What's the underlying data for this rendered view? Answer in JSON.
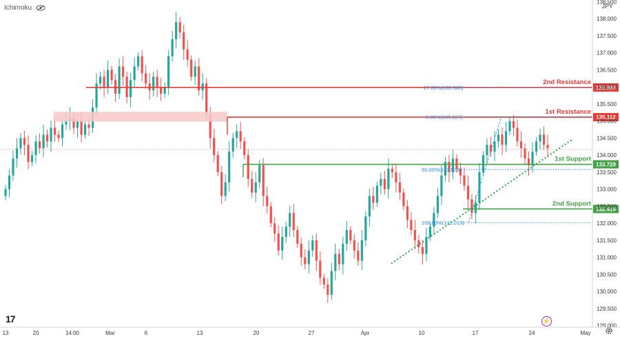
{
  "header": {
    "indicator": "Ichimoku",
    "currency": "JPY"
  },
  "colors": {
    "up": "#26a69a",
    "down": "#ef5350",
    "resistance": "#e53935",
    "support": "#43a047",
    "trend": "#2e9e44",
    "fib": "#1e88e5",
    "zone": "#f8c8c8"
  },
  "chart_data": {
    "type": "candlestick",
    "ylim": [
      128.95,
      138.55
    ],
    "y_ticks": [
      "138.500",
      "138.000",
      "137.500",
      "137.000",
      "136.500",
      "136.000",
      "135.500",
      "135.000",
      "134.500",
      "134.000",
      "133.500",
      "133.000",
      "132.500",
      "132.000",
      "131.500",
      "131.000",
      "130.500",
      "130.000",
      "129.500",
      "129.000"
    ],
    "x_ticks": [
      "13",
      "20",
      "14:00",
      "Mar",
      "6",
      "13",
      "20",
      "27",
      "Apr",
      "10",
      "17",
      "24",
      "May"
    ],
    "closes": [
      133.0,
      133.4,
      133.9,
      134.2,
      134.5,
      134.3,
      133.8,
      134.0,
      134.4,
      134.2,
      134.6,
      134.4,
      134.8,
      134.6,
      134.5,
      134.9,
      135.0,
      135.1,
      134.8,
      135.0,
      134.6,
      134.9,
      134.8,
      135.4,
      136.1,
      136.3,
      136.0,
      136.5,
      136.2,
      135.8,
      136.6,
      136.3,
      135.7,
      136.2,
      136.6,
      136.9,
      136.4,
      136.1,
      135.9,
      136.3,
      136.0,
      135.8,
      136.0,
      136.9,
      137.4,
      137.9,
      137.6,
      137.1,
      136.8,
      136.3,
      136.6,
      135.9,
      136.1,
      135.2,
      134.5,
      134.0,
      133.5,
      132.8,
      133.2,
      134.1,
      134.5,
      134.7,
      134.4,
      134.0,
      133.3,
      132.9,
      133.2,
      133.7,
      132.8,
      132.5,
      132.0,
      131.7,
      131.2,
      131.6,
      131.9,
      132.3,
      131.8,
      131.4,
      131.0,
      130.8,
      131.2,
      131.5,
      130.9,
      130.4,
      130.2,
      129.9,
      130.6,
      131.1,
      130.8,
      131.4,
      131.8,
      131.5,
      131.2,
      130.9,
      131.5,
      132.2,
      132.8,
      132.6,
      133.1,
      133.3,
      133.0,
      133.6,
      133.5,
      133.2,
      132.9,
      132.5,
      132.1,
      131.8,
      131.5,
      131.3,
      131.1,
      131.6,
      131.9,
      132.3,
      132.8,
      133.4,
      133.8,
      133.5,
      133.9,
      133.6,
      133.4,
      133.1,
      132.7,
      132.3,
      132.6,
      133.5,
      134.0,
      134.3,
      134.1,
      134.4,
      134.6,
      134.3,
      134.7,
      135.0,
      134.8,
      134.4,
      134.2,
      133.9,
      133.7,
      134.1,
      134.4,
      134.6,
      134.3,
      134.2
    ],
    "levels": [
      {
        "name": "2nd Resistance",
        "value": "135.984"
      },
      {
        "name": "1st Resistance",
        "value": "135.112"
      },
      {
        "name": "1st Support",
        "value": "133.729"
      },
      {
        "name": "2nd Support",
        "value": "132.419"
      }
    ],
    "fib_labels": [
      "27.20%(135.985)",
      "0.00%(135.127)",
      "50.00%(133.578)",
      "100.00%(132.019)"
    ]
  }
}
